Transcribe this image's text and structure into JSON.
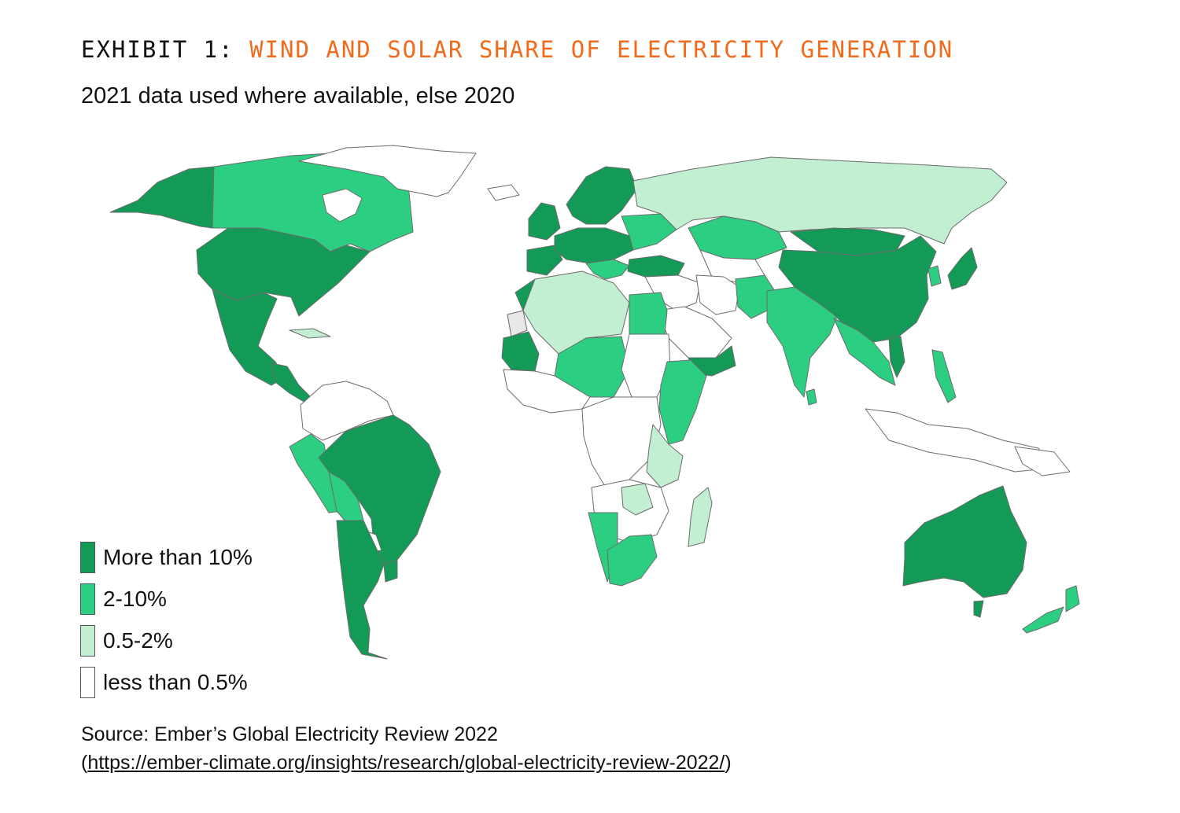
{
  "header": {
    "exhibit_prefix": "EXHIBIT 1: ",
    "title": "WIND AND SOLAR SHARE OF ELECTRICITY GENERATION",
    "subtitle": "2021 data used where available, else 2020"
  },
  "colors": {
    "more_than_10": "#139a57",
    "two_to_10": "#2ccf82",
    "half_to_2": "#c2efd2",
    "less_than_half": "#ffffff",
    "accent": "#f26a1b",
    "border": "#6b6b6b"
  },
  "legend": [
    {
      "label": "More than 10%",
      "color": "#139a57"
    },
    {
      "label": "2-10%",
      "color": "#2ccf82"
    },
    {
      "label": "0.5-2%",
      "color": "#c2efd2"
    },
    {
      "label": "less than 0.5%",
      "color": "#ffffff"
    }
  ],
  "source": {
    "line1": "Source: Ember’s Global Electricity Review 2022",
    "open_paren": "(",
    "url": "https://ember-climate.org/insights/research/global-electricity-review-2022/",
    "close_paren": ")"
  }
}
